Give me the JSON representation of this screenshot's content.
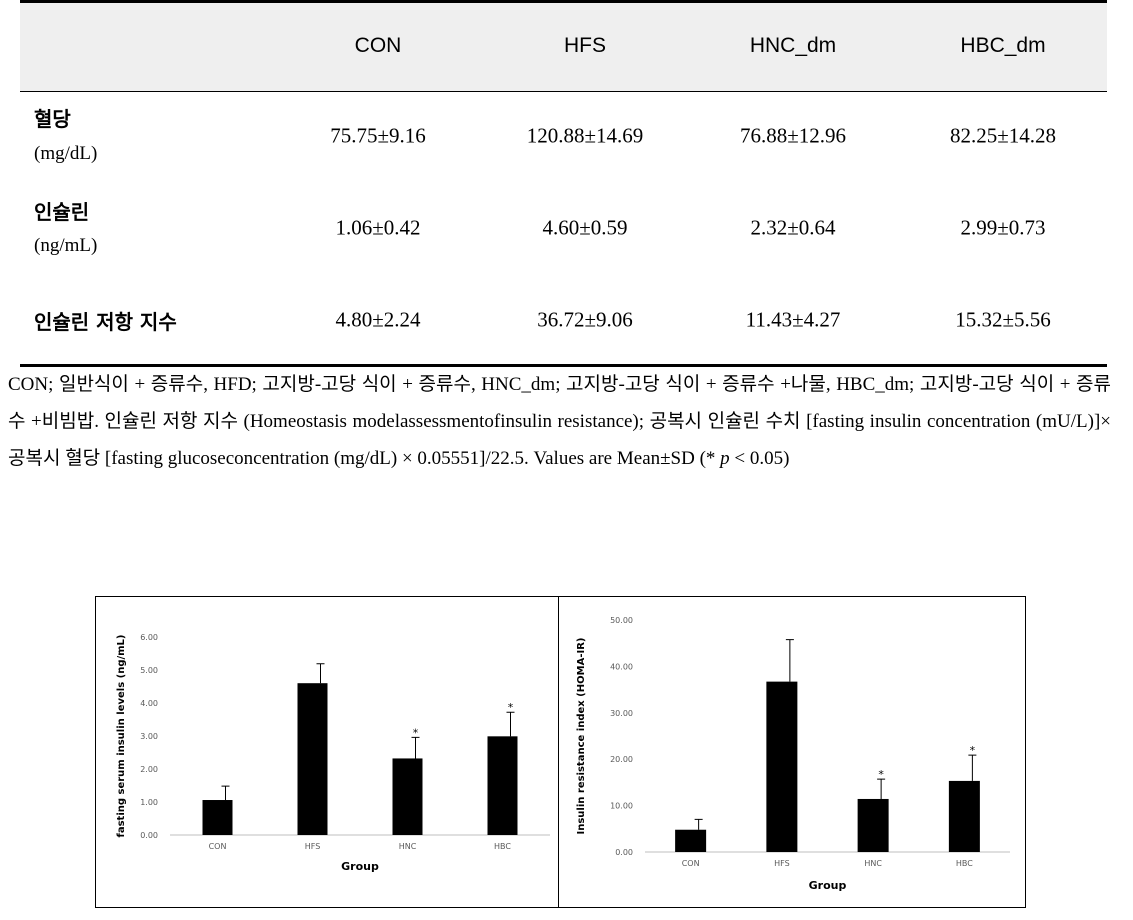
{
  "table": {
    "columns": [
      "CON",
      "HFS",
      "HNC_dm",
      "HBC_dm"
    ],
    "rows": [
      {
        "name": "혈당",
        "unit": "(mg/dL)",
        "cells": [
          "75.75±9.16",
          "120.88±14.69",
          "76.88±12.96",
          "82.25±14.28"
        ]
      },
      {
        "name": "인슐린",
        "unit": "(ng/mL)",
        "cells": [
          "1.06±0.42",
          "4.60±0.59",
          "2.32±0.64",
          "2.99±0.73"
        ]
      },
      {
        "name": "인슐린 저항 지수",
        "cells": [
          "4.80±2.24",
          "36.72±9.06",
          "11.43±4.27",
          "15.32±5.56"
        ]
      }
    ]
  },
  "caption": [
    "CON; 일반식이 + 증류수, HFD; 고지방-고당 식이 + 증류수, HNC_dm; 고지방-고당 식이 + 증류수 +나물, HBC_dm; 고지방-고당 식이 + 증류수 +비빔밥. 인슐린 저항 지수 (Homeostasis modelassessmentofinsulin resistance); 공복시 인슐린 수치 [fasting insulin concentration (mU/L)]× 공복시 혈당 [fasting glucoseconcentration (mg/dL) × 0.05551]/22.5. Values are Mean±SD (* ",
    "p",
    " < 0.05)"
  ],
  "chart_data": [
    {
      "type": "bar",
      "x_label": "Group",
      "y_label": "fasting serum insulin levels (ng/mL)",
      "categories": [
        "CON",
        "HFS",
        "HNC",
        "HBC"
      ],
      "values": [
        1.06,
        4.6,
        2.32,
        2.99
      ],
      "errors": [
        0.42,
        0.59,
        0.64,
        0.73
      ],
      "significance": [
        null,
        null,
        "*",
        "*"
      ],
      "color": "#000000",
      "ylim": [
        0,
        6
      ],
      "yticks": [
        {
          "value": 0,
          "label": "0.00"
        },
        {
          "value": 1,
          "label": "1.00"
        },
        {
          "value": 2,
          "label": "2.00"
        },
        {
          "value": 3,
          "label": "3.00"
        },
        {
          "value": 4,
          "label": "4.00"
        },
        {
          "value": 5,
          "label": "5.00"
        },
        {
          "value": 6,
          "label": "6.00"
        }
      ]
    },
    {
      "type": "bar",
      "x_label": "Group",
      "y_label": "Insulin resistance index (HOMA-IR)",
      "categories": [
        "CON",
        "HFS",
        "HNC",
        "HBC"
      ],
      "values": [
        4.8,
        36.72,
        11.43,
        15.32
      ],
      "errors": [
        2.24,
        9.06,
        4.27,
        5.56
      ],
      "significance": [
        null,
        null,
        "*",
        "*"
      ],
      "color": "#000000",
      "ylim": [
        0,
        50
      ],
      "yticks": [
        {
          "value": 0,
          "label": "0.00"
        },
        {
          "value": 10,
          "label": "10.00"
        },
        {
          "value": 20,
          "label": "20.00"
        },
        {
          "value": 30,
          "label": "30.00"
        },
        {
          "value": 40,
          "label": "40.00"
        },
        {
          "value": 50,
          "label": "50.00"
        }
      ]
    }
  ]
}
